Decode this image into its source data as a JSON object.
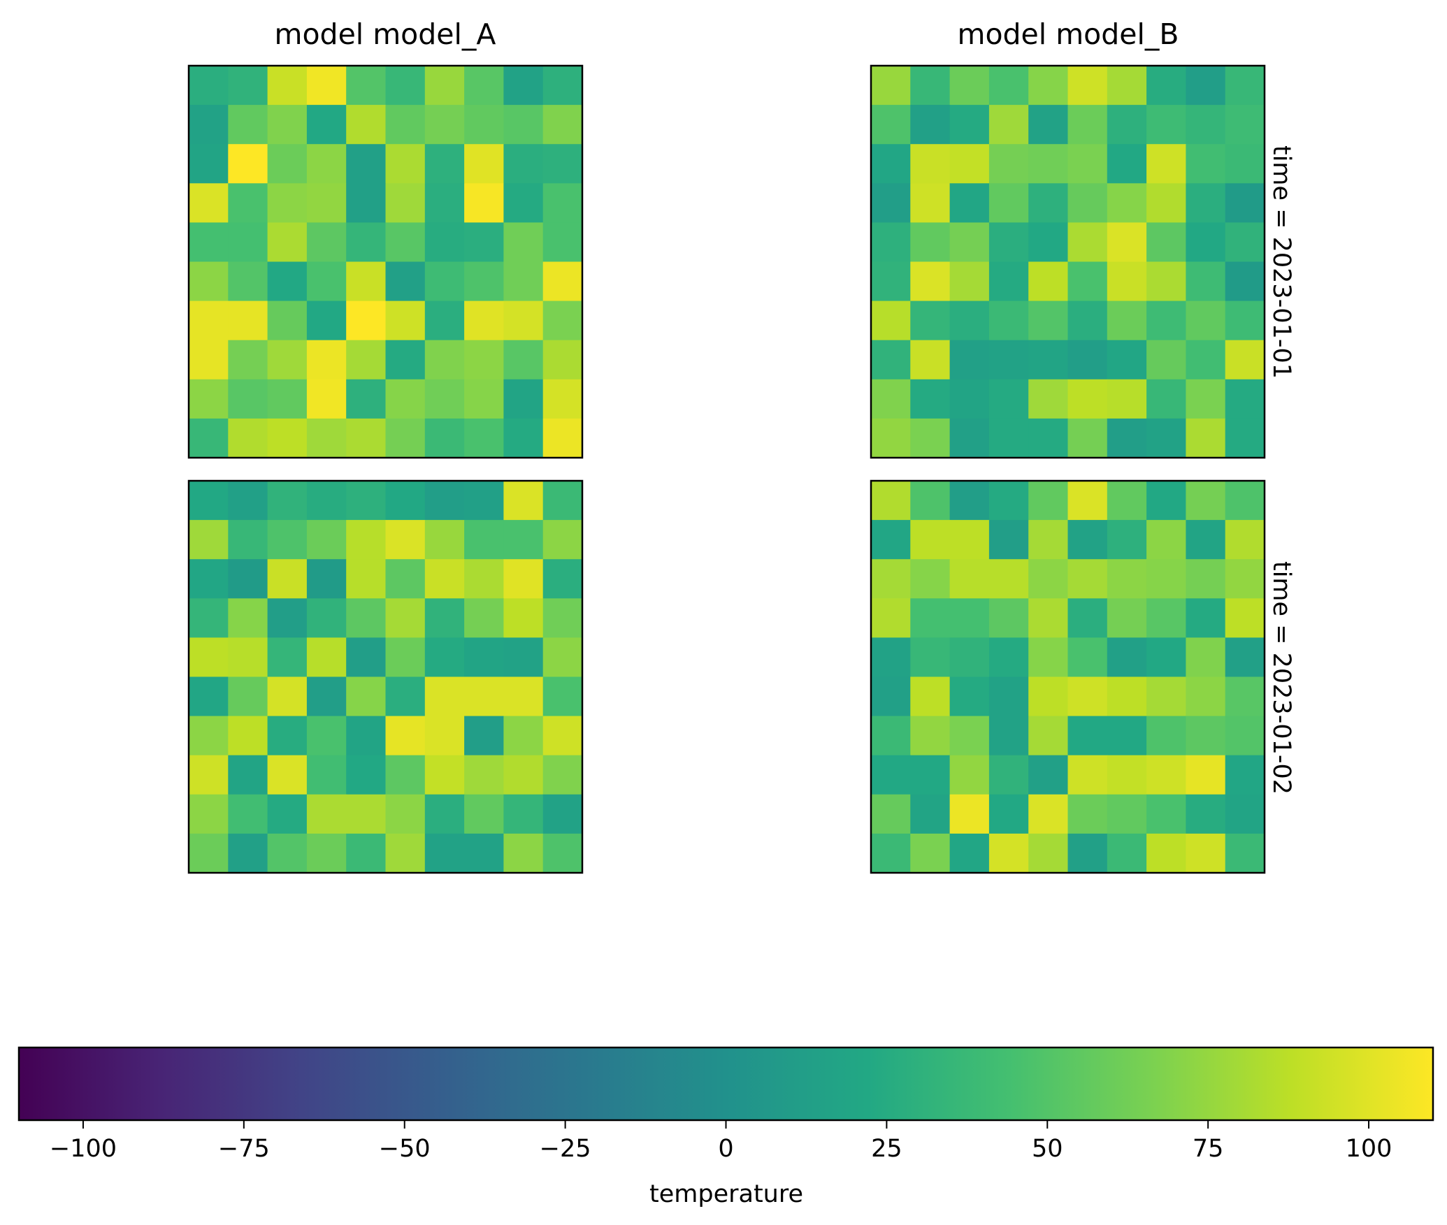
{
  "chart_data": {
    "type": "heatmap",
    "colormap": "viridis",
    "variable": "temperature",
    "col_titles": [
      "model model_A",
      "model model_B"
    ],
    "row_titles": [
      "time = 2023-01-01",
      "time = 2023-01-02"
    ],
    "colorbar": {
      "label": "temperature",
      "vmin": -110,
      "vmax": 110,
      "ticks": [
        -100,
        -75,
        -50,
        -25,
        0,
        25,
        50,
        75,
        100
      ],
      "tick_labels": [
        "−100",
        "−75",
        "−50",
        "−25",
        "0",
        "25",
        "50",
        "75",
        "100"
      ]
    },
    "panels": [
      {
        "model": "model_A",
        "time": "2023-01-01",
        "grid": [
          [
            28,
            32,
            92,
            106,
            50,
            36,
            76,
            52,
            16,
            30
          ],
          [
            16,
            56,
            68,
            22,
            84,
            56,
            64,
            56,
            52,
            68
          ],
          [
            18,
            110,
            60,
            72,
            14,
            82,
            30,
            100,
            28,
            30
          ],
          [
            98,
            46,
            72,
            74,
            14,
            78,
            28,
            108,
            24,
            46
          ],
          [
            44,
            44,
            82,
            54,
            34,
            52,
            26,
            28,
            62,
            46
          ],
          [
            72,
            50,
            22,
            46,
            92,
            14,
            40,
            48,
            62,
            104
          ],
          [
            102,
            102,
            58,
            22,
            110,
            94,
            28,
            100,
            96,
            66
          ],
          [
            102,
            64,
            78,
            104,
            80,
            24,
            68,
            72,
            52,
            82
          ],
          [
            72,
            52,
            56,
            106,
            30,
            70,
            62,
            70,
            18,
            96
          ],
          [
            36,
            84,
            88,
            78,
            82,
            64,
            38,
            46,
            24,
            104
          ]
        ]
      },
      {
        "model": "model_B",
        "time": "2023-01-01",
        "grid": [
          [
            76,
            36,
            60,
            46,
            70,
            94,
            80,
            26,
            12,
            36
          ],
          [
            48,
            14,
            24,
            78,
            16,
            60,
            30,
            40,
            34,
            40
          ],
          [
            20,
            92,
            90,
            64,
            62,
            66,
            22,
            94,
            42,
            38
          ],
          [
            12,
            94,
            20,
            56,
            30,
            58,
            70,
            84,
            28,
            10
          ],
          [
            30,
            56,
            64,
            28,
            22,
            82,
            98,
            54,
            22,
            32
          ],
          [
            32,
            98,
            80,
            24,
            88,
            46,
            92,
            82,
            40,
            10
          ],
          [
            86,
            34,
            28,
            38,
            50,
            28,
            60,
            40,
            56,
            40
          ],
          [
            32,
            92,
            14,
            16,
            18,
            12,
            20,
            58,
            42,
            92
          ],
          [
            68,
            24,
            18,
            24,
            78,
            88,
            86,
            36,
            66,
            24
          ],
          [
            74,
            66,
            14,
            24,
            24,
            64,
            12,
            16,
            82,
            24
          ]
        ]
      },
      {
        "model": "model_A",
        "time": "2023-01-02",
        "grid": [
          [
            22,
            14,
            32,
            26,
            30,
            22,
            12,
            14,
            98,
            38
          ],
          [
            78,
            36,
            48,
            60,
            86,
            98,
            76,
            46,
            46,
            72
          ],
          [
            20,
            10,
            92,
            10,
            86,
            54,
            92,
            82,
            100,
            28
          ],
          [
            34,
            70,
            12,
            32,
            54,
            80,
            32,
            64,
            88,
            62
          ],
          [
            88,
            86,
            34,
            86,
            12,
            60,
            24,
            18,
            16,
            72
          ],
          [
            20,
            58,
            96,
            12,
            70,
            28,
            98,
            98,
            98,
            46
          ],
          [
            72,
            88,
            26,
            46,
            18,
            102,
            98,
            12,
            72,
            94
          ],
          [
            94,
            18,
            98,
            42,
            22,
            54,
            90,
            78,
            84,
            68
          ],
          [
            72,
            42,
            24,
            82,
            82,
            72,
            28,
            56,
            34,
            16
          ],
          [
            60,
            14,
            50,
            60,
            38,
            78,
            16,
            16,
            72,
            48
          ]
        ]
      },
      {
        "model": "model_B",
        "time": "2023-01-02",
        "grid": [
          [
            84,
            48,
            12,
            24,
            56,
            98,
            56,
            22,
            64,
            48
          ],
          [
            20,
            88,
            88,
            12,
            80,
            16,
            30,
            72,
            18,
            84
          ],
          [
            80,
            70,
            86,
            86,
            72,
            80,
            72,
            70,
            64,
            74
          ],
          [
            84,
            44,
            44,
            54,
            82,
            28,
            64,
            52,
            24,
            88
          ],
          [
            16,
            36,
            32,
            24,
            70,
            46,
            14,
            22,
            68,
            14
          ],
          [
            14,
            88,
            24,
            16,
            88,
            94,
            88,
            80,
            72,
            52
          ],
          [
            38,
            74,
            66,
            16,
            80,
            22,
            22,
            48,
            54,
            50
          ],
          [
            22,
            22,
            74,
            32,
            14,
            94,
            90,
            94,
            102,
            20
          ],
          [
            58,
            18,
            104,
            22,
            98,
            60,
            56,
            46,
            26,
            18
          ],
          [
            38,
            66,
            20,
            96,
            80,
            14,
            38,
            88,
            94,
            38
          ]
        ]
      }
    ]
  }
}
